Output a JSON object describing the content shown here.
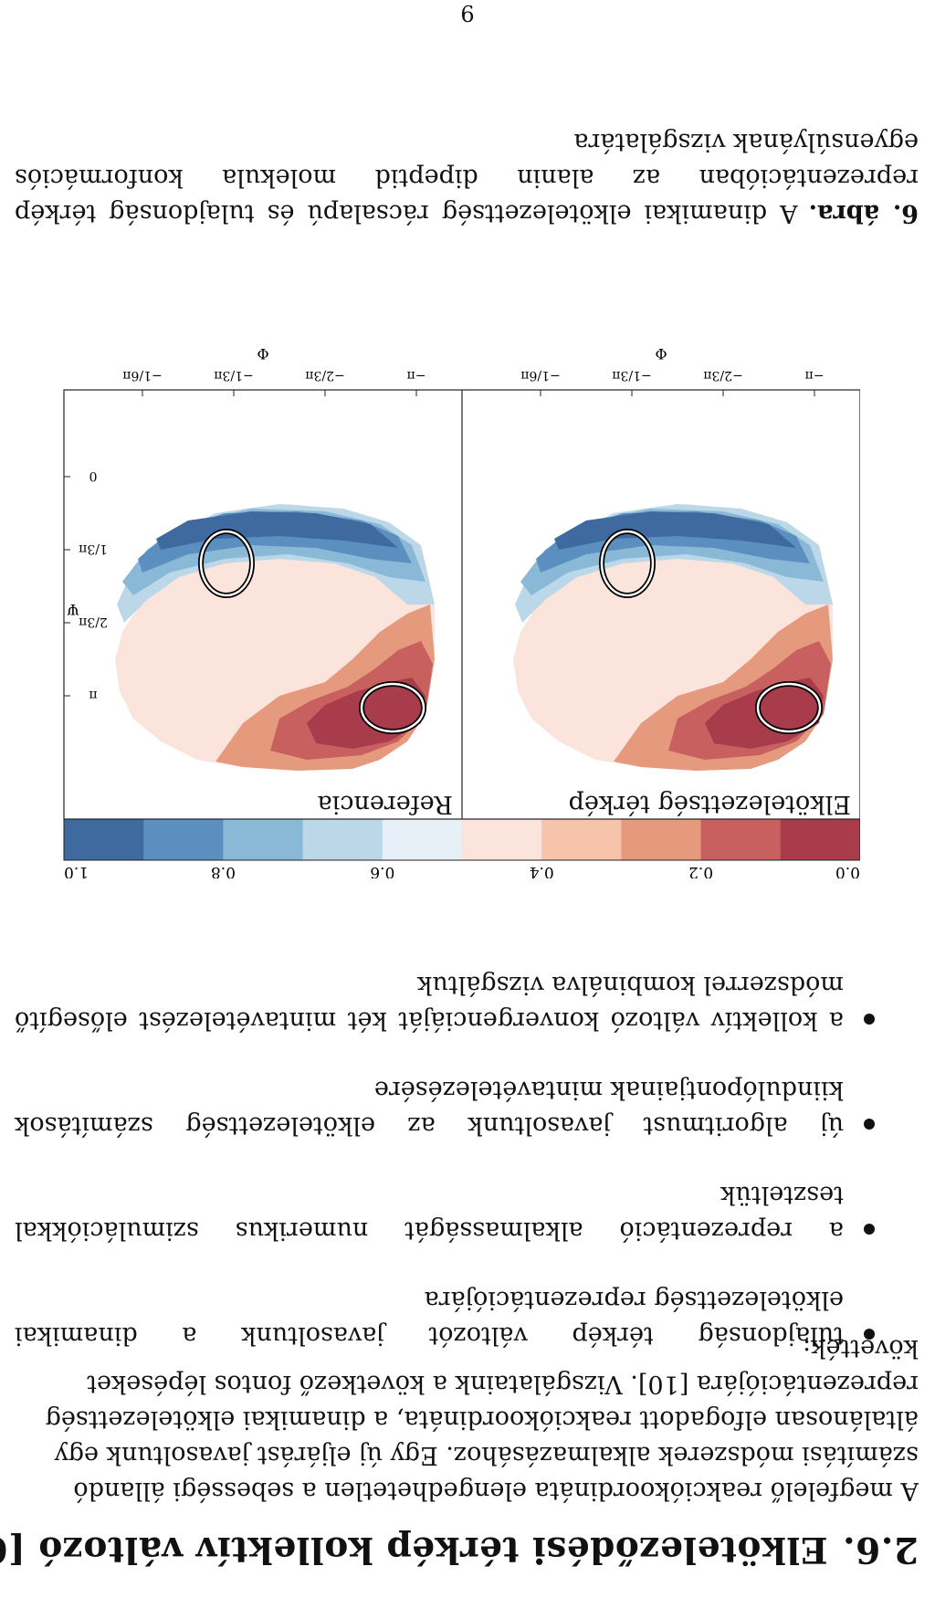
{
  "section": {
    "number": "2.6.",
    "title": "Elköteleződési térkép kollektív változó [6]"
  },
  "intro_lines": [
    "A megfelelő reakciókoordináta elengedhetetlen a sebességi állandó",
    "számítási módszerek alkalmazásához. Egy új eljárást javasoltunk egy",
    "általánosan elfogadott reakciókoordináta, a dinamikai elkötelezettség",
    "reprezentációjára [10]. Vizsgálataink a következő fontos lépéseket",
    "követték:"
  ],
  "bullets": [
    "tulajdonság térkép változót javasoltunk a dinamikai elkötelezettség reprezentációjára",
    "a reprezentáció alkalmasságát numerikus szimulációkkal teszteltük",
    "új algoritmust javasoltunk az elkötelezettség számítások kiindulópontjainak mintavételezésére",
    "a kollektív változó konvergenciáját két mintavételezést elősegítő módszerrel kombinálva vizsgáltuk"
  ],
  "figure": {
    "colorbar": {
      "ticks": [
        "0.0",
        "0.2",
        "0.4",
        "0.6",
        "0.8",
        "1.0"
      ],
      "colors": [
        "#a83c4a",
        "#c96060",
        "#e59a7e",
        "#f6c4ab",
        "#fae4dc",
        "#e7f0f6",
        "#bcd8e8",
        "#8ab9d8",
        "#5b8fc0",
        "#3e6aa0"
      ]
    },
    "panels": [
      {
        "label": "Elkötelezettség térkép",
        "xlabel": "Φ"
      },
      {
        "label": "Referencia",
        "xlabel": "Φ",
        "ylabel": "Ψ"
      }
    ],
    "xticks": [
      "−π",
      "−2/3π",
      "−1/3π",
      "−1/6π"
    ],
    "yticks": [
      "0",
      "1/3π",
      "2/3π",
      "π"
    ]
  },
  "caption": {
    "label": "6. ábra.",
    "text": "A dinamikai elkötelezettség rácsalapú és tulajdonság térkép reprezentációban az alanin dipeptid molekula konformációs egyensúlyának vizsgálatára"
  },
  "page_number": "9"
}
